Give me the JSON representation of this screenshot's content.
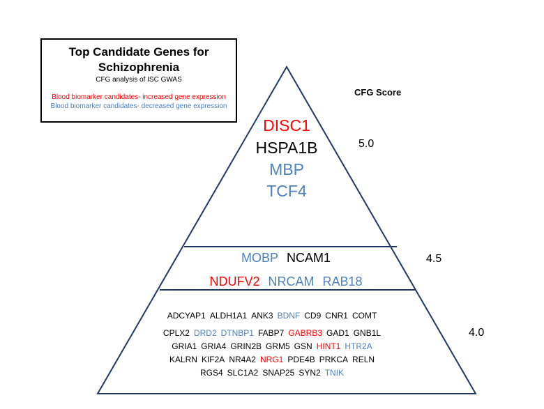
{
  "legend": {
    "title": "Top Candidate Genes for Schizophrenia",
    "subtitle": "CFG analysis of ISC GWAS",
    "increased": "Blood biomarker candidates- increased gene expression",
    "decreased": "Blood biomarker candidates- decreased gene expression"
  },
  "score_header": "CFG Score",
  "colors": {
    "increased": "#ff0000",
    "decreased": "#4f81bd",
    "neutral": "#000000"
  },
  "tiers": [
    {
      "score": "5.0",
      "genes": [
        {
          "name": "DISC1",
          "expr": "increased"
        },
        {
          "name": "HSPA1B",
          "expr": "neutral"
        },
        {
          "name": "MBP",
          "expr": "decreased"
        },
        {
          "name": "TCF4",
          "expr": "decreased"
        }
      ]
    },
    {
      "score": "4.5",
      "rows": [
        [
          {
            "name": "MOBP",
            "expr": "decreased"
          },
          {
            "name": "NCAM1",
            "expr": "neutral"
          }
        ],
        [
          {
            "name": "NDUFV2",
            "expr": "increased"
          },
          {
            "name": "NRCAM",
            "expr": "decreased"
          },
          {
            "name": "RAB18",
            "expr": "decreased"
          }
        ]
      ]
    },
    {
      "score": "4.0",
      "rows": [
        [
          {
            "name": "ADCYAP1",
            "expr": "neutral"
          },
          {
            "name": "ALDH1A1",
            "expr": "neutral"
          },
          {
            "name": "ANK3",
            "expr": "neutral"
          },
          {
            "name": "BDNF",
            "expr": "decreased"
          },
          {
            "name": "CD9",
            "expr": "neutral"
          },
          {
            "name": "CNR1",
            "expr": "neutral"
          },
          {
            "name": "COMT",
            "expr": "neutral"
          }
        ],
        [
          {
            "name": "CPLX2",
            "expr": "neutral"
          },
          {
            "name": "DRD2",
            "expr": "decreased"
          },
          {
            "name": "DTNBP1",
            "expr": "decreased"
          },
          {
            "name": "FABP7",
            "expr": "neutral"
          },
          {
            "name": "GABRB3",
            "expr": "increased"
          },
          {
            "name": "GAD1",
            "expr": "neutral"
          },
          {
            "name": "GNB1L",
            "expr": "neutral"
          }
        ],
        [
          {
            "name": "GRIA1",
            "expr": "neutral"
          },
          {
            "name": "GRIA4",
            "expr": "neutral"
          },
          {
            "name": "GRIN2B",
            "expr": "neutral"
          },
          {
            "name": "GRM5",
            "expr": "neutral"
          },
          {
            "name": "GSN",
            "expr": "neutral"
          },
          {
            "name": "HINT1",
            "expr": "increased"
          },
          {
            "name": "HTR2A",
            "expr": "decreased"
          }
        ],
        [
          {
            "name": "KALRN",
            "expr": "neutral"
          },
          {
            "name": "KIF2A",
            "expr": "neutral"
          },
          {
            "name": "NR4A2",
            "expr": "neutral"
          },
          {
            "name": "NRG1",
            "expr": "increased"
          },
          {
            "name": "PDE4B",
            "expr": "neutral"
          },
          {
            "name": "PRKCA",
            "expr": "neutral"
          },
          {
            "name": "RELN",
            "expr": "neutral"
          }
        ],
        [
          {
            "name": "RGS4",
            "expr": "neutral"
          },
          {
            "name": "SLC1A2",
            "expr": "neutral"
          },
          {
            "name": "SNAP25",
            "expr": "neutral"
          },
          {
            "name": "SYN2",
            "expr": "neutral"
          },
          {
            "name": "TNIK",
            "expr": "decreased"
          }
        ]
      ]
    }
  ]
}
